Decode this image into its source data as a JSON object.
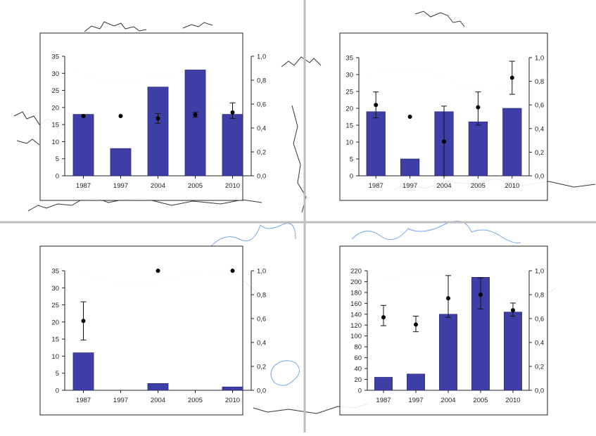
{
  "colors": {
    "bar": "#3d3fa6",
    "bar_edge": "#23246b",
    "point": "#000000",
    "divider": "#bdbdbd",
    "coast_black": "#333333",
    "coast_blue": "#7aa6e6",
    "frame": "#222222"
  },
  "chart_data": [
    {
      "type": "bar",
      "panel": "top-left",
      "categories": [
        "1987",
        "1997",
        "2004",
        "2005",
        "2010"
      ],
      "y_left_ticks": [
        "0",
        "5",
        "10",
        "15",
        "20",
        "25",
        "30",
        "35"
      ],
      "y_right_ticks": [
        "0,0",
        "0,2",
        "0,4",
        "0,6",
        "0,8",
        "1,0"
      ],
      "ylim_left": [
        0,
        35
      ],
      "ylim_right": [
        0,
        1
      ],
      "bars": [
        18,
        8,
        26,
        31,
        18
      ],
      "points": [
        {
          "value": 0.5,
          "low": null,
          "high": null
        },
        {
          "value": 0.5,
          "low": null,
          "high": null
        },
        {
          "value": 0.48,
          "low": 0.44,
          "high": 0.52
        },
        {
          "value": 0.51,
          "low": 0.49,
          "high": 0.53
        },
        {
          "value": 0.53,
          "low": 0.48,
          "high": 0.61
        }
      ]
    },
    {
      "type": "bar",
      "panel": "top-right",
      "categories": [
        "1987",
        "1997",
        "2004",
        "2005",
        "2010"
      ],
      "y_left_ticks": [
        "0",
        "5",
        "10",
        "15",
        "20",
        "25",
        "30",
        "35"
      ],
      "y_right_ticks": [
        "0,0",
        "0,2",
        "0,4",
        "0,6",
        "0,8",
        "1,0"
      ],
      "ylim_left": [
        0,
        35
      ],
      "ylim_right": [
        0,
        1
      ],
      "bars": [
        19,
        5,
        19,
        16,
        20
      ],
      "points": [
        {
          "value": 0.6,
          "low": 0.49,
          "high": 0.71
        },
        {
          "value": 0.5,
          "low": null,
          "high": null
        },
        {
          "value": 0.29,
          "low": 0.0,
          "high": 0.59
        },
        {
          "value": 0.58,
          "low": 0.43,
          "high": 0.71
        },
        {
          "value": 0.83,
          "low": 0.69,
          "high": 0.97
        }
      ]
    },
    {
      "type": "bar",
      "panel": "bottom-left",
      "categories": [
        "1987",
        "1997",
        "2004",
        "2005",
        "2010"
      ],
      "y_left_ticks": [
        "0",
        "5",
        "10",
        "15",
        "20",
        "25",
        "30",
        "35"
      ],
      "y_right_ticks": [
        "0,0",
        "0,2",
        "0,4",
        "0,6",
        "0,8",
        "1,0"
      ],
      "ylim_left": [
        0,
        35
      ],
      "ylim_right": [
        0,
        1
      ],
      "bars": [
        11,
        0,
        2,
        0,
        1
      ],
      "points": [
        {
          "value": 0.58,
          "low": 0.42,
          "high": 0.74
        },
        null,
        {
          "value": 1.0,
          "low": null,
          "high": null
        },
        null,
        {
          "value": 1.0,
          "low": null,
          "high": null
        }
      ]
    },
    {
      "type": "bar",
      "panel": "bottom-right",
      "categories": [
        "1987",
        "1997",
        "2004",
        "2005",
        "2010"
      ],
      "y_left_ticks": [
        "0",
        "20",
        "40",
        "60",
        "80",
        "100",
        "120",
        "140",
        "160",
        "180",
        "200",
        "220"
      ],
      "y_right_ticks": [
        "0,0",
        "0,2",
        "0,4",
        "0,6",
        "0,8",
        "1,0"
      ],
      "ylim_left": [
        0,
        220
      ],
      "ylim_right": [
        0,
        1
      ],
      "bars": [
        24,
        30,
        140,
        208,
        144
      ],
      "points": [
        {
          "value": 0.61,
          "low": 0.54,
          "high": 0.71
        },
        {
          "value": 0.55,
          "low": 0.49,
          "high": 0.62
        },
        {
          "value": 0.77,
          "low": 0.61,
          "high": 0.96
        },
        {
          "value": 0.8,
          "low": 0.68,
          "high": 0.94
        },
        {
          "value": 0.67,
          "low": 0.62,
          "high": 0.73
        }
      ]
    }
  ]
}
